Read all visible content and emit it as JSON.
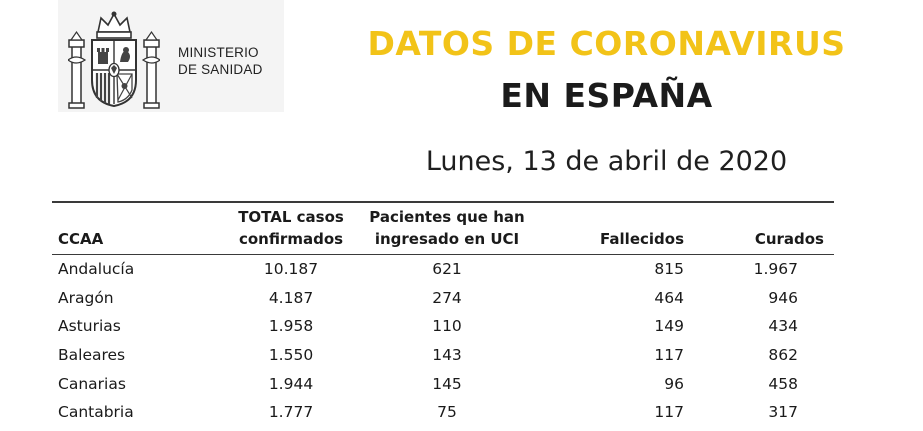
{
  "colors": {
    "title_yellow": "#f2c318",
    "title_dark": "#1b1b1b",
    "logo_background": "#f4f4f4"
  },
  "logo": {
    "icon": "coat-of-arms-of-spain",
    "line1": "MINISTERIO",
    "line2": "DE SANIDAD"
  },
  "title": {
    "line1": "DATOS DE CORONAVIRUS",
    "line2": "EN ESPAÑA"
  },
  "date": "Lunes, 13 de abril de 2020",
  "table": {
    "headers": {
      "ccaa": "CCAA",
      "total_line1": "TOTAL casos",
      "total_line2": "confirmados",
      "uci_line1": "Pacientes que han",
      "uci_line2": "ingresado en UCI",
      "fallecidos": "Fallecidos",
      "curados": "Curados"
    },
    "rows": [
      {
        "ccaa": "Andalucía",
        "total": "10.187",
        "uci": "621",
        "fallecidos": "815",
        "curados": "1.967"
      },
      {
        "ccaa": "Aragón",
        "total": "4.187",
        "uci": "274",
        "fallecidos": "464",
        "curados": "946"
      },
      {
        "ccaa": "Asturias",
        "total": "1.958",
        "uci": "110",
        "fallecidos": "149",
        "curados": "434"
      },
      {
        "ccaa": "Baleares",
        "total": "1.550",
        "uci": "143",
        "fallecidos": "117",
        "curados": "862"
      },
      {
        "ccaa": "Canarias",
        "total": "1.944",
        "uci": "145",
        "fallecidos": "96",
        "curados": "458"
      },
      {
        "ccaa": "Cantabria",
        "total": "1.777",
        "uci": "75",
        "fallecidos": "117",
        "curados": "317"
      }
    ]
  }
}
